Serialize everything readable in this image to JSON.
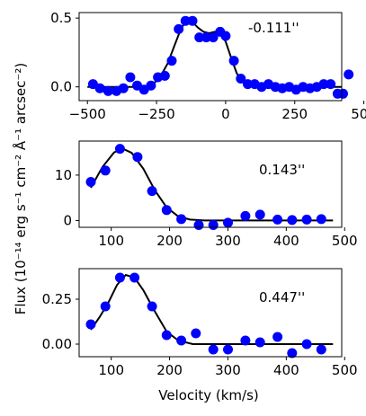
{
  "chart_data": [
    {
      "type": "scatter",
      "xlim": [
        -530,
        420
      ],
      "ylim": [
        -0.1,
        0.54
      ],
      "xticks": [
        -500,
        -250,
        0,
        250,
        500
      ],
      "xtick_labels": [
        "−500",
        "−250",
        "0",
        "250",
        "500"
      ],
      "yticks": [
        0.0,
        0.5
      ],
      "ytick_labels": [
        "0.0",
        "0.5"
      ],
      "annotation": "-0.111''",
      "grid": false,
      "point_color": "#0000ff",
      "line_color": "#000000",
      "points": [
        [
          -480,
          0.02
        ],
        [
          -455,
          -0.01
        ],
        [
          -425,
          -0.03
        ],
        [
          -395,
          -0.03
        ],
        [
          -370,
          -0.01
        ],
        [
          -345,
          0.07
        ],
        [
          -320,
          0.01
        ],
        [
          -295,
          -0.02
        ],
        [
          -270,
          0.01
        ],
        [
          -245,
          0.07
        ],
        [
          -220,
          0.08
        ],
        [
          -195,
          0.19
        ],
        [
          -170,
          0.42
        ],
        [
          -145,
          0.48
        ],
        [
          -120,
          0.48
        ],
        [
          -95,
          0.36
        ],
        [
          -70,
          0.36
        ],
        [
          -45,
          0.36
        ],
        [
          -20,
          0.4
        ],
        [
          0,
          0.37
        ],
        [
          30,
          0.19
        ],
        [
          55,
          0.06
        ],
        [
          80,
          0.02
        ],
        [
          105,
          0.02
        ],
        [
          130,
          0.0
        ],
        [
          155,
          0.02
        ],
        [
          180,
          0.0
        ],
        [
          205,
          -0.01
        ],
        [
          230,
          0.0
        ],
        [
          255,
          -0.02
        ],
        [
          280,
          0.0
        ],
        [
          305,
          -0.01
        ],
        [
          330,
          0.0
        ],
        [
          355,
          0.02
        ],
        [
          380,
          0.02
        ],
        [
          405,
          -0.05
        ],
        [
          425,
          -0.05
        ],
        [
          445,
          0.09
        ]
      ],
      "fit": [
        [
          -500,
          0.0
        ],
        [
          -300,
          0.0
        ],
        [
          -270,
          0.01
        ],
        [
          -240,
          0.06
        ],
        [
          -210,
          0.17
        ],
        [
          -185,
          0.3
        ],
        [
          -160,
          0.43
        ],
        [
          -140,
          0.48
        ],
        [
          -120,
          0.47
        ],
        [
          -100,
          0.43
        ],
        [
          -80,
          0.4
        ],
        [
          -60,
          0.39
        ],
        [
          -40,
          0.4
        ],
        [
          -20,
          0.39
        ],
        [
          0,
          0.33
        ],
        [
          20,
          0.21
        ],
        [
          40,
          0.1
        ],
        [
          60,
          0.04
        ],
        [
          90,
          0.01
        ],
        [
          130,
          0.0
        ],
        [
          420,
          0.0
        ]
      ]
    },
    {
      "type": "scatter",
      "xlim": [
        45,
        495
      ],
      "ylim": [
        -1.5,
        17.5
      ],
      "xticks": [
        100,
        200,
        300,
        400,
        500
      ],
      "xtick_labels": [
        "100",
        "200",
        "300",
        "400",
        "500"
      ],
      "yticks": [
        0,
        10
      ],
      "ytick_labels": [
        "0",
        "10"
      ],
      "annotation": "0.143''",
      "grid": false,
      "point_color": "#0000ff",
      "line_color": "#000000",
      "points": [
        [
          65,
          8.5
        ],
        [
          90,
          11.0
        ],
        [
          115,
          15.8
        ],
        [
          145,
          14.0
        ],
        [
          170,
          6.5
        ],
        [
          195,
          2.3
        ],
        [
          220,
          0.3
        ],
        [
          250,
          -1.0
        ],
        [
          275,
          -1.0
        ],
        [
          300,
          -0.5
        ],
        [
          330,
          1.0
        ],
        [
          355,
          1.3
        ],
        [
          385,
          0.2
        ],
        [
          410,
          0.1
        ],
        [
          435,
          0.2
        ],
        [
          460,
          0.3
        ]
      ],
      "fit": [
        [
          65,
          7.2
        ],
        [
          85,
          11.8
        ],
        [
          105,
          15.0
        ],
        [
          120,
          15.8
        ],
        [
          135,
          14.9
        ],
        [
          155,
          11.4
        ],
        [
          175,
          6.6
        ],
        [
          195,
          2.9
        ],
        [
          215,
          0.9
        ],
        [
          235,
          0.2
        ],
        [
          260,
          0.0
        ],
        [
          480,
          0.0
        ]
      ]
    },
    {
      "type": "scatter",
      "xlim": [
        45,
        495
      ],
      "ylim": [
        -0.07,
        0.42
      ],
      "xticks": [
        100,
        200,
        300,
        400,
        500
      ],
      "xtick_labels": [
        "100",
        "200",
        "300",
        "400",
        "500"
      ],
      "yticks": [
        0.0,
        0.25
      ],
      "ytick_labels": [
        "0.00",
        "0.25"
      ],
      "annotation": "0.447''",
      "xlabel": "Velocity (km/s)",
      "grid": false,
      "point_color": "#0000ff",
      "line_color": "#000000",
      "points": [
        [
          65,
          0.11
        ],
        [
          90,
          0.21
        ],
        [
          115,
          0.37
        ],
        [
          140,
          0.37
        ],
        [
          170,
          0.21
        ],
        [
          195,
          0.05
        ],
        [
          220,
          0.02
        ],
        [
          245,
          0.06
        ],
        [
          275,
          -0.03
        ],
        [
          300,
          -0.03
        ],
        [
          330,
          0.02
        ],
        [
          355,
          0.01
        ],
        [
          385,
          0.04
        ],
        [
          410,
          -0.05
        ],
        [
          435,
          0.0
        ],
        [
          460,
          -0.03
        ]
      ],
      "fit": [
        [
          65,
          0.08
        ],
        [
          80,
          0.15
        ],
        [
          95,
          0.23
        ],
        [
          110,
          0.33
        ],
        [
          125,
          0.385
        ],
        [
          140,
          0.37
        ],
        [
          155,
          0.3
        ],
        [
          175,
          0.18
        ],
        [
          195,
          0.07
        ],
        [
          215,
          0.02
        ],
        [
          240,
          0.0
        ],
        [
          480,
          0.0
        ]
      ]
    }
  ],
  "shared_ylabel": "Flux (10⁻¹⁴ erg s⁻¹ cm⁻² Å⁻¹ arcsec⁻²)"
}
